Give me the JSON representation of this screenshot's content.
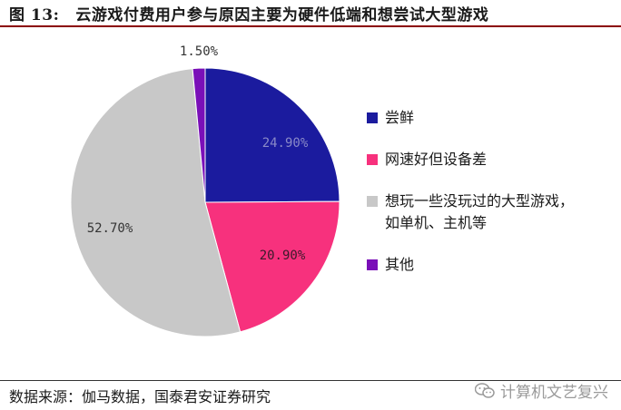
{
  "figure": {
    "number": "图 13:",
    "title": "云游戏付费用户参与原因主要为硬件低端和想尝试大型游戏"
  },
  "chart_data": {
    "type": "pie",
    "unit": "%",
    "slices": [
      {
        "label": "尝鲜",
        "value": 24.9,
        "display": "24.90%",
        "color": "#1b1b9e",
        "label_color": "#8a8ac8"
      },
      {
        "label": "网速好但设备差",
        "value": 20.9,
        "display": "20.90%",
        "color": "#f7317d",
        "label_color": "#3a1a2a"
      },
      {
        "label": "想玩一些没玩过的大型游戏，\n如单机、主机等",
        "value": 52.7,
        "display": "52.70%",
        "color": "#c8c8c8",
        "label_color": "#333333"
      },
      {
        "label": "其他",
        "value": 1.5,
        "display": "1.50%",
        "color": "#7a0fb8",
        "label_color": "#333333"
      }
    ],
    "start_angle_deg": 0,
    "direction": "clockwise",
    "legend_position": "right"
  },
  "footer": {
    "source": "数据来源：伽马数据，国泰君安证券研究",
    "watermark": "计算机文艺复兴",
    "watermark_icon": "wechat-icon"
  }
}
